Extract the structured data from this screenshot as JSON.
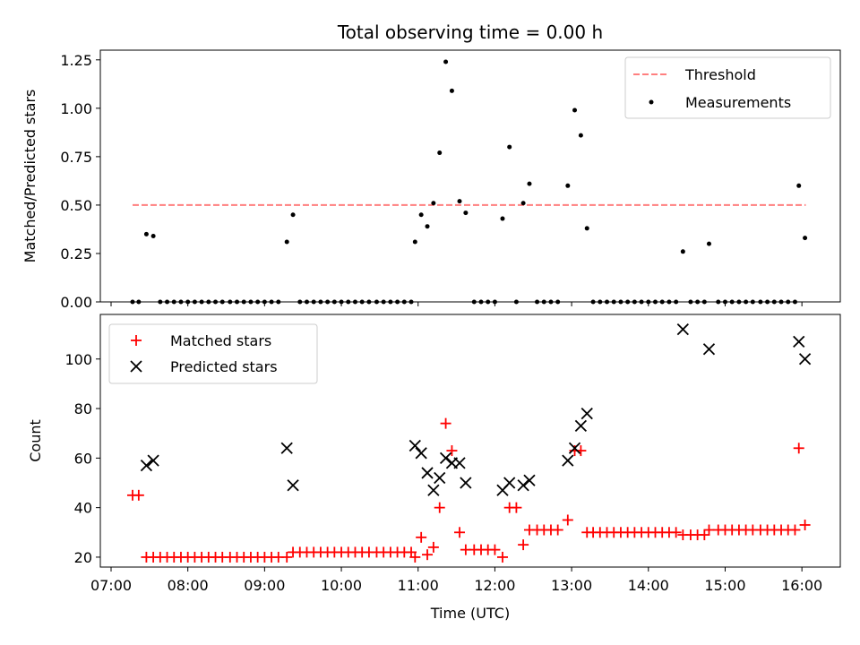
{
  "chart_data": {
    "title": "Total observing time = 0.00 h",
    "xlabel": "Time (UTC)",
    "x_unit": "hour of day (UTC)",
    "xlim": [
      6.86,
      16.5
    ],
    "xticks": [
      7,
      8,
      9,
      10,
      11,
      12,
      13,
      14,
      15,
      16
    ],
    "xtick_labels": [
      "07:00",
      "08:00",
      "09:00",
      "10:00",
      "11:00",
      "12:00",
      "13:00",
      "14:00",
      "15:00",
      "16:00"
    ],
    "panels": [
      {
        "type": "scatter",
        "ylabel": "Matched/Predicted stars",
        "ylim": [
          0,
          1.3
        ],
        "yticks": [
          0,
          0.25,
          0.5,
          0.75,
          1.0,
          1.25
        ],
        "ytick_labels": [
          "0.00",
          "0.25",
          "0.50",
          "0.75",
          "1.00",
          "1.25"
        ],
        "legend": "upper-right",
        "threshold": {
          "name": "Threshold",
          "value": 0.5,
          "x_range": [
            7.28,
            16.05
          ],
          "color": "#ff7f7f"
        },
        "series": [
          {
            "name": "Measurements",
            "marker": "dot",
            "color": "#000000",
            "x": [
              7.28,
              7.36,
              7.46,
              7.55,
              7.64,
              7.73,
              7.82,
              7.91,
              8.0,
              8.09,
              8.18,
              8.27,
              8.36,
              8.45,
              8.55,
              8.64,
              8.73,
              8.82,
              8.91,
              9.0,
              9.09,
              9.18,
              9.29,
              9.37,
              9.46,
              9.55,
              9.64,
              9.73,
              9.82,
              9.91,
              10.0,
              10.09,
              10.18,
              10.27,
              10.36,
              10.46,
              10.55,
              10.64,
              10.73,
              10.82,
              10.91,
              10.96,
              11.04,
              11.12,
              11.2,
              11.28,
              11.36,
              11.44,
              11.54,
              11.62,
              11.73,
              11.82,
              11.91,
              12.0,
              12.1,
              12.19,
              12.28,
              12.37,
              12.45,
              12.55,
              12.64,
              12.73,
              12.82,
              12.95,
              13.04,
              13.12,
              13.2,
              13.28,
              13.37,
              13.46,
              13.55,
              13.64,
              13.73,
              13.82,
              13.91,
              14.0,
              14.09,
              14.18,
              14.27,
              14.36,
              14.45,
              14.55,
              14.64,
              14.73,
              14.79,
              14.91,
              15.0,
              15.09,
              15.18,
              15.27,
              15.36,
              15.46,
              15.55,
              15.64,
              15.73,
              15.82,
              15.91,
              15.96,
              16.04
            ],
            "y": [
              0,
              0,
              0.35,
              0.34,
              0,
              0,
              0,
              0,
              0,
              0,
              0,
              0,
              0,
              0,
              0,
              0,
              0,
              0,
              0,
              0,
              0,
              0,
              0.31,
              0.45,
              0,
              0,
              0,
              0,
              0,
              0,
              0,
              0,
              0,
              0,
              0,
              0,
              0,
              0,
              0,
              0,
              0,
              0.31,
              0.45,
              0.39,
              0.51,
              0.77,
              1.24,
              1.09,
              0.52,
              0.46,
              0,
              0,
              0,
              0,
              0.43,
              0.8,
              0,
              0.51,
              0.61,
              0,
              0,
              0,
              0,
              0.6,
              0.99,
              0.86,
              0.38,
              0,
              0,
              0,
              0,
              0,
              0,
              0,
              0,
              0,
              0,
              0,
              0,
              0,
              0.26,
              0,
              0,
              0,
              0.3,
              0,
              0,
              0,
              0,
              0,
              0,
              0,
              0,
              0,
              0,
              0,
              0,
              0.6,
              0.33
            ]
          }
        ]
      },
      {
        "type": "scatter",
        "ylabel": "Count",
        "ylim": [
          16,
          118
        ],
        "yticks": [
          20,
          40,
          60,
          80,
          100
        ],
        "ytick_labels": [
          "20",
          "40",
          "60",
          "80",
          "100"
        ],
        "legend": "upper-left",
        "series": [
          {
            "name": "Matched stars",
            "marker": "plus",
            "color": "#ff0000",
            "x": [
              7.28,
              7.36,
              7.46,
              7.55,
              7.64,
              7.73,
              7.82,
              7.91,
              8.0,
              8.09,
              8.18,
              8.27,
              8.36,
              8.45,
              8.55,
              8.64,
              8.73,
              8.82,
              8.91,
              9.0,
              9.09,
              9.18,
              9.29,
              9.37,
              9.46,
              9.55,
              9.64,
              9.73,
              9.82,
              9.91,
              10.0,
              10.09,
              10.18,
              10.27,
              10.36,
              10.46,
              10.55,
              10.64,
              10.73,
              10.82,
              10.91,
              10.96,
              11.04,
              11.12,
              11.2,
              11.28,
              11.36,
              11.44,
              11.54,
              11.62,
              11.73,
              11.82,
              11.91,
              12.0,
              12.1,
              12.19,
              12.28,
              12.37,
              12.45,
              12.55,
              12.64,
              12.73,
              12.82,
              12.95,
              13.04,
              13.12,
              13.2,
              13.28,
              13.37,
              13.46,
              13.55,
              13.64,
              13.73,
              13.82,
              13.91,
              14.0,
              14.09,
              14.18,
              14.27,
              14.36,
              14.45,
              14.55,
              14.64,
              14.73,
              14.79,
              14.91,
              15.0,
              15.09,
              15.18,
              15.27,
              15.36,
              15.46,
              15.55,
              15.64,
              15.73,
              15.82,
              15.91,
              15.96,
              16.04
            ],
            "y": [
              45,
              45,
              20,
              20,
              20,
              20,
              20,
              20,
              20,
              20,
              20,
              20,
              20,
              20,
              20,
              20,
              20,
              20,
              20,
              20,
              20,
              20,
              20,
              22,
              22,
              22,
              22,
              22,
              22,
              22,
              22,
              22,
              22,
              22,
              22,
              22,
              22,
              22,
              22,
              22,
              22,
              20,
              28,
              21,
              24,
              40,
              74,
              63,
              30,
              23,
              23,
              23,
              23,
              23,
              20,
              40,
              40,
              25,
              31,
              31,
              31,
              31,
              31,
              35,
              63,
              63,
              30,
              30,
              30,
              30,
              30,
              30,
              30,
              30,
              30,
              30,
              30,
              30,
              30,
              30,
              29,
              29,
              29,
              29,
              31,
              31,
              31,
              31,
              31,
              31,
              31,
              31,
              31,
              31,
              31,
              31,
              31,
              64,
              33
            ]
          },
          {
            "name": "Predicted stars",
            "marker": "x",
            "color": "#000000",
            "x": [
              7.46,
              7.55,
              9.29,
              9.37,
              10.96,
              11.04,
              11.12,
              11.2,
              11.28,
              11.36,
              11.44,
              11.54,
              11.62,
              12.1,
              12.19,
              12.37,
              12.45,
              12.95,
              13.04,
              13.12,
              13.2,
              14.45,
              14.79,
              15.96,
              16.04
            ],
            "y": [
              57,
              59,
              64,
              49,
              65,
              62,
              54,
              47,
              52,
              60,
              58,
              58,
              50,
              47,
              50,
              49,
              51,
              59,
              64,
              73,
              78,
              112,
              104,
              107,
              100
            ]
          }
        ]
      }
    ]
  }
}
